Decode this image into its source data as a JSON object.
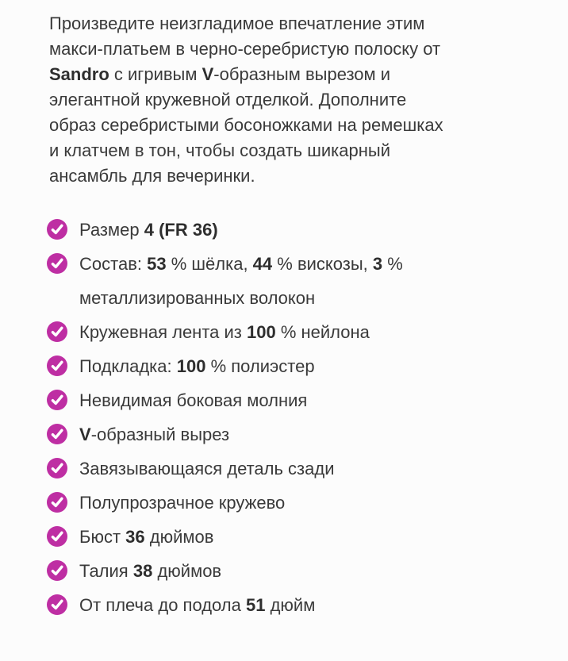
{
  "colors": {
    "accent": "#BE2EA3",
    "text": "#3A3A3A",
    "bold_text": "#2E2E2E",
    "background": "#FCFCFC",
    "check_glyph": "#FFFFFF"
  },
  "icons": {
    "bullet": "check-circle-icon"
  },
  "description": {
    "lines": [
      [
        {
          "t": "Произведите неизгладимое впечатление этим"
        }
      ],
      [
        {
          "t": "макси-платьем в черно-серебристую полоску от"
        }
      ],
      [
        {
          "t": "Sandro",
          "b": true
        },
        {
          "t": " с игривым "
        },
        {
          "t": "V",
          "b": true
        },
        {
          "t": "-образным вырезом и"
        }
      ],
      [
        {
          "t": "элегантной кружевной отделкой. Дополните"
        }
      ],
      [
        {
          "t": "образ серебристыми босоножками на ремешках"
        }
      ],
      [
        {
          "t": "и клатчем в тон, чтобы создать шикарный"
        }
      ],
      [
        {
          "t": "ансамбль для вечеринки."
        }
      ]
    ]
  },
  "features": {
    "items": [
      {
        "lines": [
          [
            {
              "t": "Размер "
            },
            {
              "t": "4 (FR 36)",
              "b": true
            }
          ]
        ]
      },
      {
        "lines": [
          [
            {
              "t": "Состав: "
            },
            {
              "t": "53",
              "b": true
            },
            {
              "t": " % шёлка, "
            },
            {
              "t": "44",
              "b": true
            },
            {
              "t": " % вискозы, "
            },
            {
              "t": "3",
              "b": true
            },
            {
              "t": " %"
            }
          ],
          [
            {
              "t": "металлизированных волокон"
            }
          ]
        ]
      },
      {
        "lines": [
          [
            {
              "t": "Кружевная лента из "
            },
            {
              "t": "100",
              "b": true
            },
            {
              "t": " % нейлона"
            }
          ]
        ]
      },
      {
        "lines": [
          [
            {
              "t": "Подкладка: "
            },
            {
              "t": "100",
              "b": true
            },
            {
              "t": " % полиэстер"
            }
          ]
        ]
      },
      {
        "lines": [
          [
            {
              "t": "Невидимая боковая молния"
            }
          ]
        ]
      },
      {
        "lines": [
          [
            {
              "t": "V",
              "b": true
            },
            {
              "t": "-образный вырез"
            }
          ]
        ]
      },
      {
        "lines": [
          [
            {
              "t": "Завязывающаяся деталь сзади"
            }
          ]
        ]
      },
      {
        "lines": [
          [
            {
              "t": "Полупрозрачное кружево"
            }
          ]
        ]
      },
      {
        "lines": [
          [
            {
              "t": "Бюст "
            },
            {
              "t": "36",
              "b": true
            },
            {
              "t": " дюймов"
            }
          ]
        ]
      },
      {
        "lines": [
          [
            {
              "t": "Талия "
            },
            {
              "t": "38",
              "b": true
            },
            {
              "t": " дюймов"
            }
          ]
        ]
      },
      {
        "lines": [
          [
            {
              "t": "От плеча до подола "
            },
            {
              "t": "51",
              "b": true
            },
            {
              "t": " дюйм"
            }
          ]
        ]
      }
    ]
  }
}
